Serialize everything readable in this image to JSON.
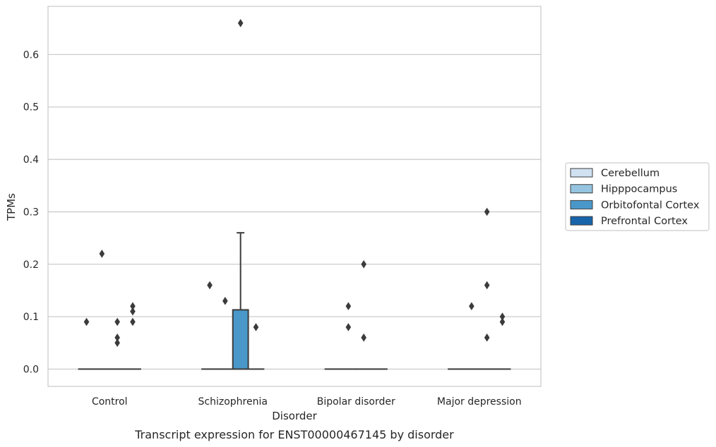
{
  "chart_data": {
    "type": "box",
    "caption": "Transcript expression for ENST00000467145 by disorder",
    "xlabel": "Disorder",
    "ylabel": "TPMs",
    "categories": [
      "Control",
      "Schizophrenia",
      "Bipolar disorder",
      "Major depression"
    ],
    "ylim": [
      -0.033,
      0.692
    ],
    "yticks": [
      0.0,
      0.1,
      0.2,
      0.3,
      0.4,
      0.5,
      0.6
    ],
    "ytick_labels": [
      "0.0",
      "0.1",
      "0.2",
      "0.3",
      "0.4",
      "0.5",
      "0.6"
    ],
    "grid": true,
    "legend_position": "right",
    "series": [
      {
        "name": "Cerebellum",
        "color": "#d0e1f2",
        "boxes": [
          {
            "category": "Control",
            "q1": 0,
            "median": 0,
            "q3": 0,
            "whisker_low": 0,
            "whisker_high": 0,
            "outliers": [
              0.09
            ]
          },
          {
            "category": "Schizophrenia",
            "q1": 0,
            "median": 0,
            "q3": 0,
            "whisker_low": 0,
            "whisker_high": 0,
            "outliers": [
              0.16
            ]
          },
          {
            "category": "Bipolar disorder",
            "q1": 0,
            "median": 0,
            "q3": 0,
            "whisker_low": 0,
            "whisker_high": 0,
            "outliers": []
          },
          {
            "category": "Major depression",
            "q1": 0,
            "median": 0,
            "q3": 0,
            "whisker_low": 0,
            "whisker_high": 0,
            "outliers": []
          }
        ]
      },
      {
        "name": "Hipppocampus",
        "color": "#94c4df",
        "boxes": [
          {
            "category": "Control",
            "q1": 0,
            "median": 0,
            "q3": 0,
            "whisker_low": 0,
            "whisker_high": 0,
            "outliers": [
              0.22
            ]
          },
          {
            "category": "Schizophrenia",
            "q1": 0,
            "median": 0,
            "q3": 0,
            "whisker_low": 0,
            "whisker_high": 0,
            "outliers": [
              0.13
            ]
          },
          {
            "category": "Bipolar disorder",
            "q1": 0,
            "median": 0,
            "q3": 0,
            "whisker_low": 0,
            "whisker_high": 0,
            "outliers": [
              0.12,
              0.08
            ]
          },
          {
            "category": "Major depression",
            "q1": 0,
            "median": 0,
            "q3": 0,
            "whisker_low": 0,
            "whisker_high": 0,
            "outliers": [
              0.12
            ]
          }
        ]
      },
      {
        "name": "Orbitofontal Cortex",
        "color": "#4a98c9",
        "boxes": [
          {
            "category": "Control",
            "q1": 0,
            "median": 0,
            "q3": 0,
            "whisker_low": 0,
            "whisker_high": 0,
            "outliers": [
              0.09,
              0.06,
              0.05
            ]
          },
          {
            "category": "Schizophrenia",
            "q1": 0,
            "median": 0,
            "q3": 0.113,
            "whisker_low": 0,
            "whisker_high": 0.26,
            "outliers": [
              0.66
            ]
          },
          {
            "category": "Bipolar disorder",
            "q1": 0,
            "median": 0,
            "q3": 0,
            "whisker_low": 0,
            "whisker_high": 0,
            "outliers": [
              0.2,
              0.06
            ]
          },
          {
            "category": "Major depression",
            "q1": 0,
            "median": 0,
            "q3": 0,
            "whisker_low": 0,
            "whisker_high": 0,
            "outliers": [
              0.3,
              0.16,
              0.06
            ]
          }
        ]
      },
      {
        "name": "Prefrontal Cortex",
        "color": "#1764ab",
        "boxes": [
          {
            "category": "Control",
            "q1": 0,
            "median": 0,
            "q3": 0,
            "whisker_low": 0,
            "whisker_high": 0,
            "outliers": [
              0.12,
              0.11,
              0.09
            ]
          },
          {
            "category": "Schizophrenia",
            "q1": 0,
            "median": 0,
            "q3": 0,
            "whisker_low": 0,
            "whisker_high": 0,
            "outliers": [
              0.08
            ]
          },
          {
            "category": "Bipolar disorder",
            "q1": 0,
            "median": 0,
            "q3": 0,
            "whisker_low": 0,
            "whisker_high": 0,
            "outliers": []
          },
          {
            "category": "Major depression",
            "q1": 0,
            "median": 0,
            "q3": 0,
            "whisker_low": 0,
            "whisker_high": 0,
            "outliers": [
              0.1,
              0.09
            ]
          }
        ]
      }
    ]
  }
}
